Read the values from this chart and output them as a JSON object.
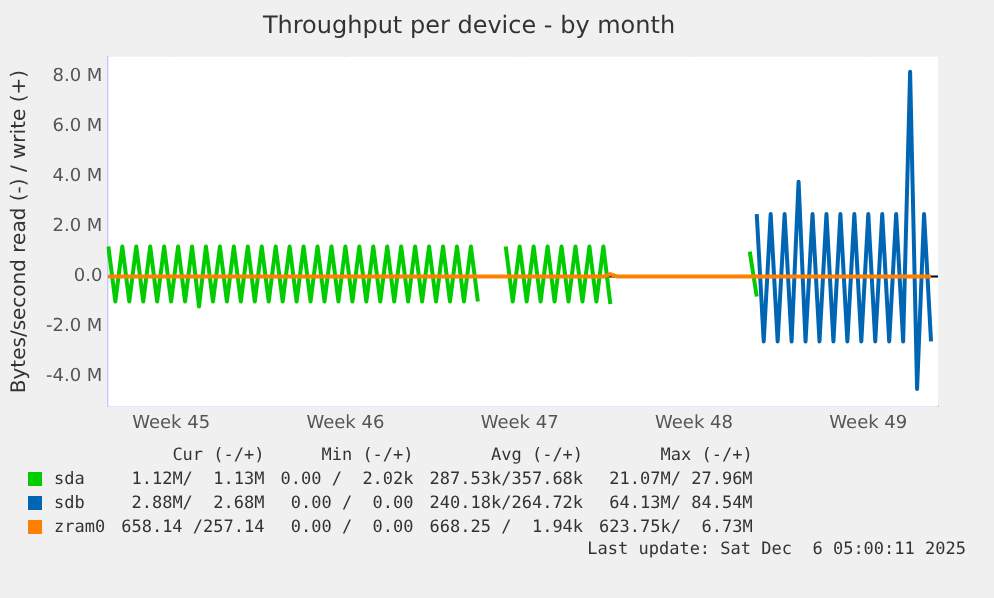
{
  "chart_data": {
    "type": "line",
    "title": "Throughput per device - by month",
    "ylabel": "Bytes/second read (-) / write (+)",
    "categories": [
      null,
      null,
      null,
      null,
      null,
      null,
      null,
      null,
      null,
      "Week 45",
      null,
      null,
      null,
      null,
      null,
      null,
      null,
      null,
      null,
      null,
      null,
      null,
      null,
      null,
      null,
      null,
      null,
      null,
      null,
      null,
      null,
      null,
      null,
      null,
      "Week 46",
      null,
      null,
      null,
      null,
      null,
      null,
      null,
      null,
      null,
      null,
      null,
      null,
      null,
      null,
      null,
      null,
      null,
      null,
      null,
      null,
      null,
      null,
      null,
      null,
      "Week 47",
      null,
      null,
      null,
      null,
      null,
      null,
      null,
      null,
      null,
      null,
      null,
      null,
      null,
      null,
      null,
      null,
      null,
      null,
      null,
      null,
      null,
      null,
      null,
      null,
      "Week 48",
      null,
      null,
      null,
      null,
      null,
      null,
      null,
      null,
      null,
      null,
      null,
      null,
      null,
      null,
      null,
      null,
      null,
      null,
      null,
      null,
      null,
      null,
      null,
      null,
      "Week 49",
      null,
      null,
      null,
      null,
      null,
      null,
      null,
      null,
      null,
      null
    ],
    "ylim": [
      -5.2,
      8.8
    ],
    "yticks": [
      {
        "value": -4,
        "label": "-4.0 M"
      },
      {
        "value": -2,
        "label": "-2.0 M"
      },
      {
        "value": 0,
        "label": "0.0"
      },
      {
        "value": 2,
        "label": "2.0 M"
      },
      {
        "value": 4,
        "label": "4.0 M"
      },
      {
        "value": 6,
        "label": "6.0 M"
      },
      {
        "value": 8,
        "label": "8.0 M"
      }
    ],
    "grid": true,
    "legend": "bottom",
    "marker": "none",
    "line_style": "solid",
    "ref_lines": [
      {
        "axis": "y",
        "value": 0,
        "color": "#000000"
      }
    ],
    "series": [
      {
        "name": "sda",
        "color": "#00cc00",
        "values": [
          1.2,
          -1.0,
          1.2,
          -1.0,
          1.2,
          -1.0,
          1.2,
          -1.0,
          1.2,
          -1.0,
          1.2,
          -1.0,
          1.2,
          -1.2,
          1.2,
          -1.0,
          1.2,
          -1.0,
          1.2,
          -1.0,
          1.2,
          -1.0,
          1.2,
          -1.0,
          1.2,
          -1.0,
          1.2,
          -1.0,
          1.2,
          -1.0,
          1.2,
          -1.0,
          1.2,
          -1.0,
          1.2,
          -1.0,
          1.2,
          -1.0,
          1.2,
          -1.0,
          1.2,
          -1.0,
          1.2,
          -1.0,
          1.2,
          -1.0,
          1.2,
          -1.0,
          1.2,
          -1.0,
          1.2,
          -1.0,
          1.2,
          -1.0,
          null,
          null,
          null,
          1.2,
          -1.0,
          1.2,
          -1.0,
          1.2,
          -1.0,
          1.2,
          -1.0,
          1.2,
          -1.0,
          1.2,
          -1.0,
          1.2,
          -1.0,
          1.2,
          -1.1,
          null,
          null,
          null,
          null,
          null,
          null,
          null,
          null,
          null,
          null,
          null,
          null,
          null,
          null,
          null,
          null,
          null,
          null,
          null,
          1.0,
          -0.8,
          null,
          null,
          null,
          null,
          null,
          null,
          null,
          null,
          null,
          null,
          null,
          null,
          null,
          null,
          null,
          null,
          null,
          null,
          null,
          null,
          null,
          null,
          null,
          null,
          null,
          null
        ]
      },
      {
        "name": "sdb",
        "color": "#0066b3",
        "values": [
          null,
          null,
          null,
          null,
          null,
          null,
          null,
          null,
          null,
          null,
          null,
          null,
          null,
          null,
          null,
          null,
          null,
          null,
          null,
          null,
          null,
          null,
          null,
          null,
          null,
          null,
          null,
          null,
          null,
          null,
          null,
          null,
          null,
          null,
          null,
          null,
          null,
          null,
          null,
          null,
          null,
          null,
          null,
          null,
          null,
          null,
          null,
          null,
          null,
          null,
          null,
          null,
          null,
          null,
          null,
          null,
          null,
          null,
          null,
          null,
          null,
          null,
          null,
          null,
          null,
          null,
          null,
          null,
          null,
          null,
          null,
          null,
          null,
          null,
          null,
          null,
          null,
          null,
          null,
          null,
          null,
          null,
          null,
          null,
          null,
          null,
          null,
          null,
          null,
          null,
          null,
          null,
          null,
          2.5,
          -2.6,
          2.5,
          -2.6,
          2.5,
          -2.6,
          3.8,
          -2.6,
          2.5,
          -2.6,
          2.5,
          -2.6,
          2.5,
          -2.6,
          2.5,
          -2.6,
          2.5,
          -2.6,
          2.5,
          -2.6,
          2.5,
          -2.6,
          8.2,
          -4.5,
          2.5,
          -2.6,
          null
        ]
      },
      {
        "name": "zram0",
        "color": "#ff8000",
        "values": [
          0,
          0,
          0,
          0,
          0,
          0,
          0,
          0,
          0,
          0,
          0,
          0,
          0,
          0,
          0,
          0,
          0,
          0,
          0,
          0,
          0,
          0,
          0,
          0,
          0,
          0,
          0,
          0,
          0,
          0,
          0,
          0,
          0,
          0,
          0,
          0,
          0,
          0,
          0,
          0,
          0,
          0,
          0,
          0,
          0,
          0,
          0,
          0,
          0,
          0,
          0,
          0,
          0,
          0,
          0,
          0,
          0,
          0,
          0,
          0,
          0,
          0,
          0,
          0,
          0,
          0,
          0,
          0,
          0,
          0,
          0,
          0,
          0.1,
          0,
          0,
          0,
          0,
          0,
          0,
          0,
          0,
          0,
          0,
          0,
          0,
          0,
          0,
          0,
          0,
          0,
          0,
          0,
          0,
          0,
          0,
          0,
          0,
          0,
          0,
          0,
          0,
          0,
          0,
          0,
          0,
          0,
          0,
          0,
          0,
          0,
          0,
          0,
          0,
          0,
          0,
          0,
          0,
          0,
          0,
          null
        ]
      }
    ],
    "annotations": [
      "Cur (-/+)",
      "Min (-/+)",
      "Avg (-/+)",
      "Max (-/+)",
      "1.12M/  1.13M",
      "0.00 /  2.02k",
      "287.53k/357.68k",
      "21.07M/ 27.96M",
      "2.88M/  2.68M",
      "0.00 /  0.00",
      "240.18k/264.72k",
      "64.13M/ 84.54M",
      "658.14 /257.14",
      "0.00 /  0.00",
      "668.25 /  1.94k",
      "623.75k/  6.73M",
      "Last update: Sat Dec  6 05:00:11 2025"
    ]
  }
}
